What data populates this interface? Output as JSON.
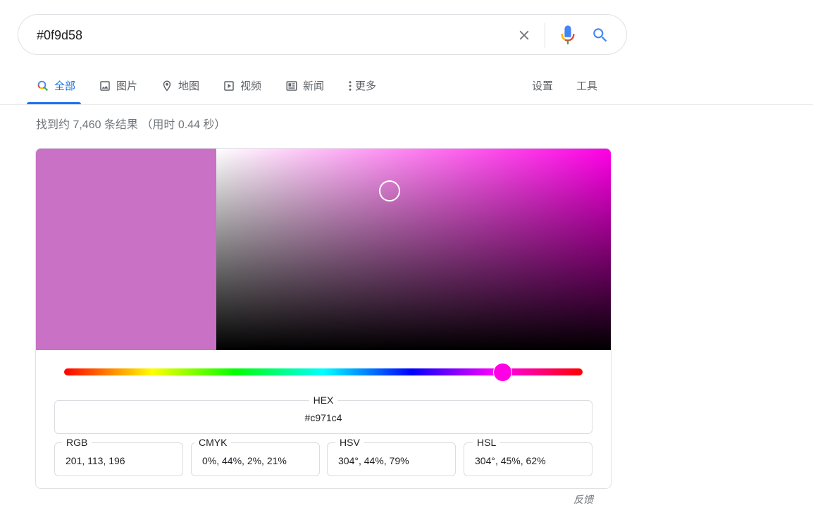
{
  "search": {
    "query": "#0f9d58",
    "clear_icon": "close-icon",
    "mic_icon": "microphone-icon",
    "search_icon": "search-icon"
  },
  "tabs": [
    {
      "label": "全部",
      "icon": "search-icon",
      "active": true
    },
    {
      "label": "图片",
      "icon": "image-icon"
    },
    {
      "label": "地图",
      "icon": "map-pin-icon"
    },
    {
      "label": "视频",
      "icon": "video-icon"
    },
    {
      "label": "新闻",
      "icon": "news-icon"
    },
    {
      "label": "更多",
      "icon": "more-vert-icon"
    }
  ],
  "tools": {
    "settings": "设置",
    "tools": "工具"
  },
  "result_stats": "找到约 7,460 条结果 （用时 0.44 秒）",
  "color_picker": {
    "selected_color": "#c971c4",
    "hue_color": "#ff00e6",
    "hue_fraction": 0.845,
    "saturation_fraction": 0.44,
    "value_fraction": 0.79,
    "fields": {
      "hex": {
        "label": "HEX",
        "value": "#c971c4"
      },
      "rgb": {
        "label": "RGB",
        "value": "201, 113, 196"
      },
      "cmyk": {
        "label": "CMYK",
        "value": "0%, 44%, 2%, 21%"
      },
      "hsv": {
        "label": "HSV",
        "value": "304°, 44%, 79%"
      },
      "hsl": {
        "label": "HSL",
        "value": "304°, 45%, 62%"
      }
    }
  },
  "feedback": "反馈",
  "colors": {
    "accent": "#1a73e8",
    "muted": "#70757a",
    "border": "#dfe1e5"
  }
}
